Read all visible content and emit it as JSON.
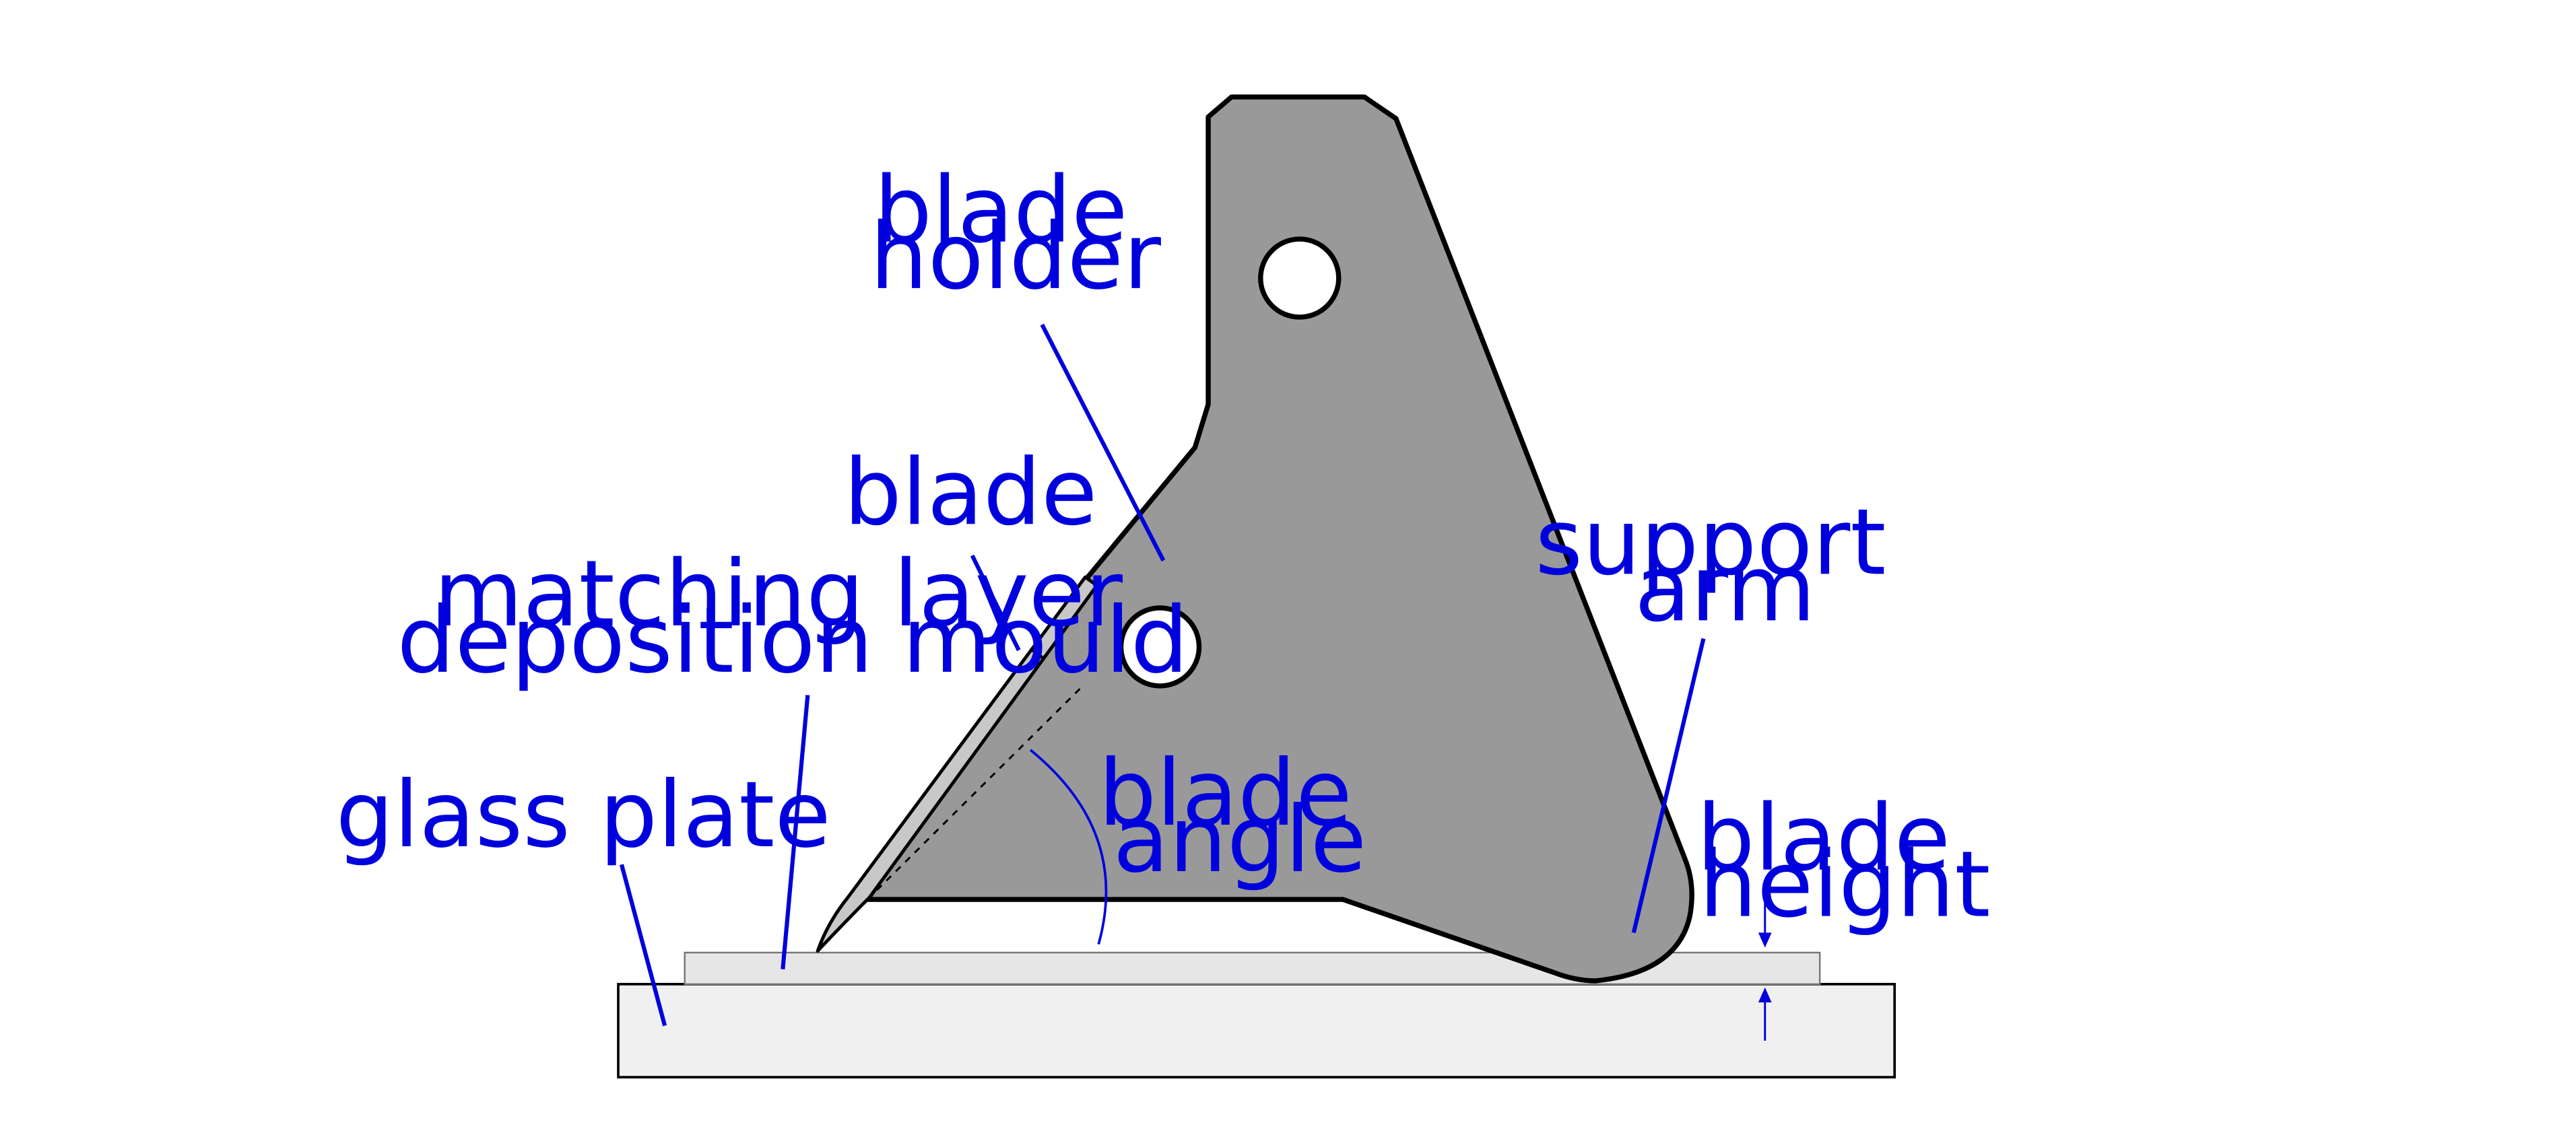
{
  "colors": {
    "background": "#ffffff",
    "label": "#0000dd",
    "holder_fill": "#999999",
    "outline": "#000000",
    "glass_fill": "#f0f0f0",
    "mould_fill": "#e6e6e6",
    "blade_fill": "#c8c8c8",
    "hole_fill": "#ffffff"
  },
  "labels": {
    "blade_holder": [
      "blade",
      "holder"
    ],
    "blade": [
      "blade"
    ],
    "matching_layer_mould": [
      "matching layer",
      "deposition mould"
    ],
    "glass_plate": [
      "glass plate"
    ],
    "blade_angle": [
      "blade",
      "angle"
    ],
    "support_arm": [
      "support",
      "arm"
    ],
    "blade_height": [
      "blade",
      "height"
    ]
  }
}
